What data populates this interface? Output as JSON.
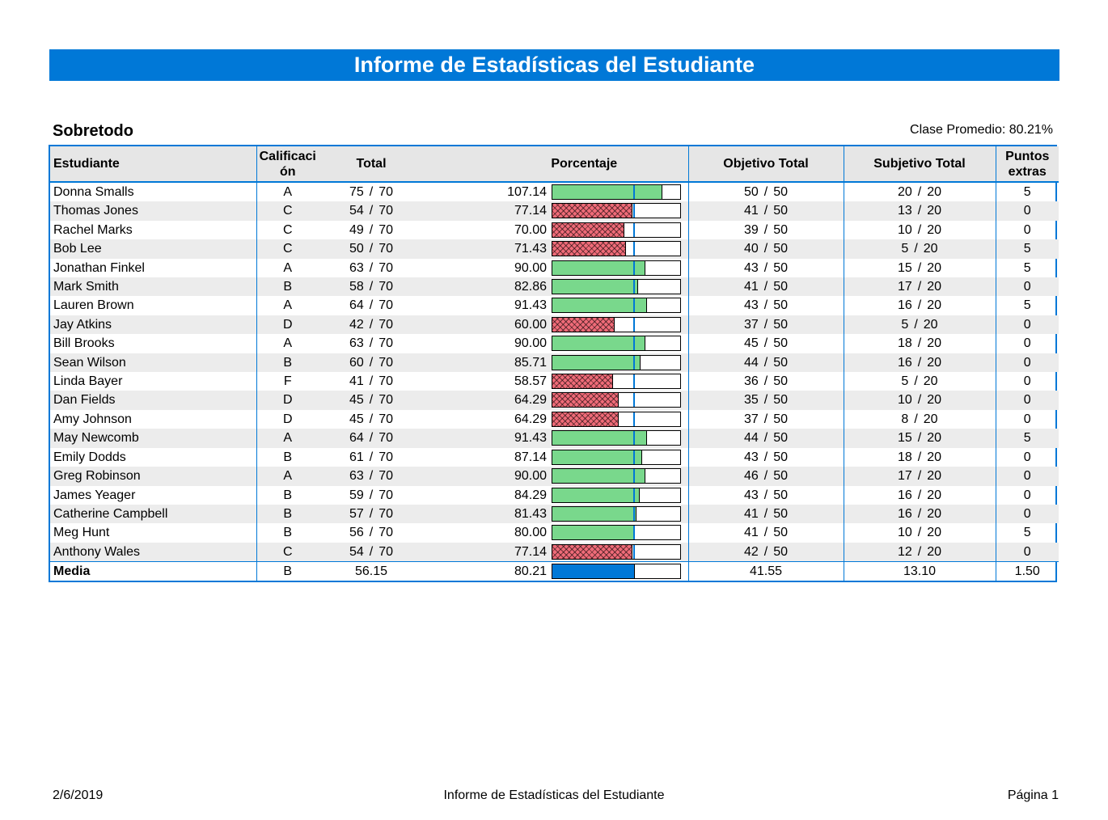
{
  "report": {
    "title": "Informe de Estadísticas del Estudiante",
    "section_title": "Sobretodo",
    "class_average": "Clase Promedio: 80.21%"
  },
  "columns": {
    "student": "Estudiante",
    "grade": "Calificación",
    "total": "Total",
    "percent": "Porcentaje",
    "objective": "Objetivo Total",
    "subjective": "Subjetivo Total",
    "extra": "Puntos extras"
  },
  "class_average_percent": 80.21,
  "pass_threshold_percent": 80,
  "colors": {
    "accent": "#0078d7",
    "pass": "#79d88c",
    "fail": "#ef6b78",
    "header_bg": "#e6e6e6",
    "stripe": "#ececec"
  },
  "rows": [
    {
      "name": "Donna Smalls",
      "grade": "A",
      "total": "75",
      "total_max": "70",
      "percent": "107.14",
      "objective": "50",
      "objective_max": "50",
      "subjective": "20",
      "subjective_max": "20",
      "extra": "5"
    },
    {
      "name": "Thomas Jones",
      "grade": "C",
      "total": "54",
      "total_max": "70",
      "percent": "77.14",
      "objective": "41",
      "objective_max": "50",
      "subjective": "13",
      "subjective_max": "20",
      "extra": "0"
    },
    {
      "name": "Rachel Marks",
      "grade": "C",
      "total": "49",
      "total_max": "70",
      "percent": "70.00",
      "objective": "39",
      "objective_max": "50",
      "subjective": "10",
      "subjective_max": "20",
      "extra": "0"
    },
    {
      "name": "Bob Lee",
      "grade": "C",
      "total": "50",
      "total_max": "70",
      "percent": "71.43",
      "objective": "40",
      "objective_max": "50",
      "subjective": "5",
      "subjective_max": "20",
      "extra": "5"
    },
    {
      "name": "Jonathan Finkel",
      "grade": "A",
      "total": "63",
      "total_max": "70",
      "percent": "90.00",
      "objective": "43",
      "objective_max": "50",
      "subjective": "15",
      "subjective_max": "20",
      "extra": "5"
    },
    {
      "name": "Mark Smith",
      "grade": "B",
      "total": "58",
      "total_max": "70",
      "percent": "82.86",
      "objective": "41",
      "objective_max": "50",
      "subjective": "17",
      "subjective_max": "20",
      "extra": "0"
    },
    {
      "name": "Lauren Brown",
      "grade": "A",
      "total": "64",
      "total_max": "70",
      "percent": "91.43",
      "objective": "43",
      "objective_max": "50",
      "subjective": "16",
      "subjective_max": "20",
      "extra": "5"
    },
    {
      "name": "Jay Atkins",
      "grade": "D",
      "total": "42",
      "total_max": "70",
      "percent": "60.00",
      "objective": "37",
      "objective_max": "50",
      "subjective": "5",
      "subjective_max": "20",
      "extra": "0"
    },
    {
      "name": "Bill Brooks",
      "grade": "A",
      "total": "63",
      "total_max": "70",
      "percent": "90.00",
      "objective": "45",
      "objective_max": "50",
      "subjective": "18",
      "subjective_max": "20",
      "extra": "0"
    },
    {
      "name": "Sean Wilson",
      "grade": "B",
      "total": "60",
      "total_max": "70",
      "percent": "85.71",
      "objective": "44",
      "objective_max": "50",
      "subjective": "16",
      "subjective_max": "20",
      "extra": "0"
    },
    {
      "name": "Linda Bayer",
      "grade": "F",
      "total": "41",
      "total_max": "70",
      "percent": "58.57",
      "objective": "36",
      "objective_max": "50",
      "subjective": "5",
      "subjective_max": "20",
      "extra": "0"
    },
    {
      "name": "Dan Fields",
      "grade": "D",
      "total": "45",
      "total_max": "70",
      "percent": "64.29",
      "objective": "35",
      "objective_max": "50",
      "subjective": "10",
      "subjective_max": "20",
      "extra": "0"
    },
    {
      "name": "Amy Johnson",
      "grade": "D",
      "total": "45",
      "total_max": "70",
      "percent": "64.29",
      "objective": "37",
      "objective_max": "50",
      "subjective": "8",
      "subjective_max": "20",
      "extra": "0"
    },
    {
      "name": "May Newcomb",
      "grade": "A",
      "total": "64",
      "total_max": "70",
      "percent": "91.43",
      "objective": "44",
      "objective_max": "50",
      "subjective": "15",
      "subjective_max": "20",
      "extra": "5"
    },
    {
      "name": "Emily Dodds",
      "grade": "B",
      "total": "61",
      "total_max": "70",
      "percent": "87.14",
      "objective": "43",
      "objective_max": "50",
      "subjective": "18",
      "subjective_max": "20",
      "extra": "0"
    },
    {
      "name": "Greg Robinson",
      "grade": "A",
      "total": "63",
      "total_max": "70",
      "percent": "90.00",
      "objective": "46",
      "objective_max": "50",
      "subjective": "17",
      "subjective_max": "20",
      "extra": "0"
    },
    {
      "name": "James Yeager",
      "grade": "B",
      "total": "59",
      "total_max": "70",
      "percent": "84.29",
      "objective": "43",
      "objective_max": "50",
      "subjective": "16",
      "subjective_max": "20",
      "extra": "0"
    },
    {
      "name": "Catherine Campbell",
      "grade": "B",
      "total": "57",
      "total_max": "70",
      "percent": "81.43",
      "objective": "41",
      "objective_max": "50",
      "subjective": "16",
      "subjective_max": "20",
      "extra": "0"
    },
    {
      "name": "Meg Hunt",
      "grade": "B",
      "total": "56",
      "total_max": "70",
      "percent": "80.00",
      "objective": "41",
      "objective_max": "50",
      "subjective": "10",
      "subjective_max": "20",
      "extra": "5"
    },
    {
      "name": "Anthony Wales",
      "grade": "C",
      "total": "54",
      "total_max": "70",
      "percent": "77.14",
      "objective": "42",
      "objective_max": "50",
      "subjective": "12",
      "subjective_max": "20",
      "extra": "0"
    }
  ],
  "average": {
    "label": "Media",
    "grade": "B",
    "total": "56.15",
    "percent": "80.21",
    "objective": "41.55",
    "subjective": "13.10",
    "extra": "1.50"
  },
  "footer": {
    "date": "2/6/2019",
    "title": "Informe de Estadísticas del Estudiante",
    "page": "Página 1"
  }
}
